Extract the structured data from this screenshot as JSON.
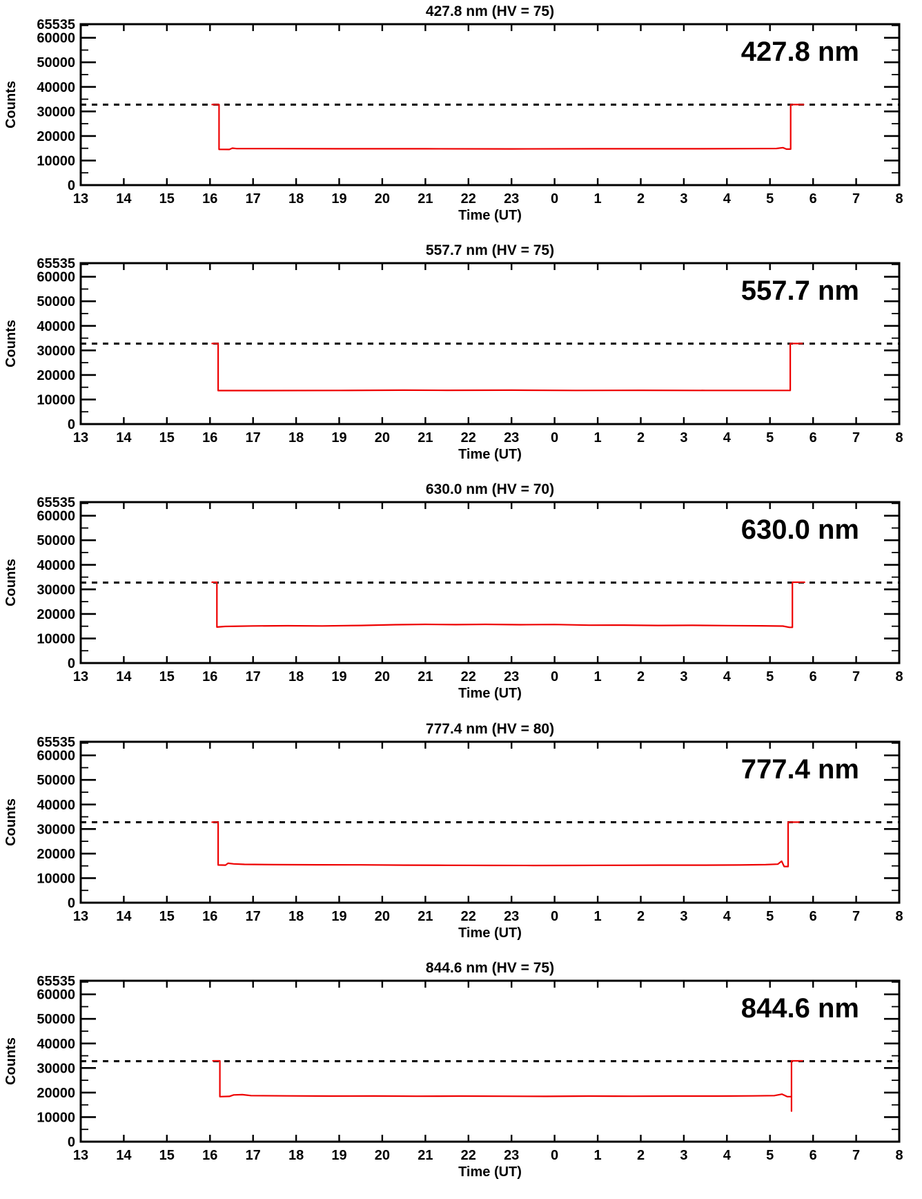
{
  "page": {
    "background": "#ffffff",
    "description": "Five stacked photometer count time-series panels"
  },
  "colors": {
    "series_line": "#ee0000",
    "axis": "#000000",
    "reference_line": "#000000",
    "text": "#000000"
  },
  "chart_data": [
    {
      "type": "line",
      "title": "427.8 nm (HV = 75)",
      "annotation": "427.8 nm",
      "xlabel": "Time (UT)",
      "ylabel": "Counts",
      "ylim": [
        0,
        65535
      ],
      "xlim_hours": [
        13,
        32
      ],
      "x_tick_labels": [
        "13",
        "14",
        "15",
        "16",
        "17",
        "18",
        "19",
        "20",
        "21",
        "22",
        "23",
        "0",
        "1",
        "2",
        "3",
        "4",
        "5",
        "6",
        "7",
        "8"
      ],
      "y_major_ticks": [
        0,
        10000,
        20000,
        30000,
        40000,
        50000,
        60000,
        65535
      ],
      "y_tick_labels": [
        "0",
        "10000",
        "20000",
        "30000",
        "40000",
        "50000",
        "60000",
        "65535"
      ],
      "y_minor_step": 5000,
      "reference_line": 32767,
      "grid": false,
      "legend": "none",
      "series": [
        {
          "name": "counts",
          "color": "#ee0000",
          "points": [
            [
              16.05,
              32800
            ],
            [
              16.21,
              32800
            ],
            [
              16.21,
              14550
            ],
            [
              16.45,
              14500
            ],
            [
              16.52,
              15050
            ],
            [
              16.62,
              14850
            ],
            [
              17.5,
              14850
            ],
            [
              19,
              14800
            ],
            [
              21,
              14800
            ],
            [
              23,
              14750
            ],
            [
              25,
              14800
            ],
            [
              27,
              14800
            ],
            [
              28.5,
              14850
            ],
            [
              29.15,
              14900
            ],
            [
              29.3,
              15250
            ],
            [
              29.38,
              14650
            ],
            [
              29.48,
              14650
            ],
            [
              29.48,
              32800
            ],
            [
              29.78,
              32800
            ]
          ]
        }
      ]
    },
    {
      "type": "line",
      "title": "557.7 nm (HV = 75)",
      "annotation": "557.7 nm",
      "xlabel": "Time (UT)",
      "ylabel": "Counts",
      "ylim": [
        0,
        65535
      ],
      "xlim_hours": [
        13,
        32
      ],
      "x_tick_labels": [
        "13",
        "14",
        "15",
        "16",
        "17",
        "18",
        "19",
        "20",
        "21",
        "22",
        "23",
        "0",
        "1",
        "2",
        "3",
        "4",
        "5",
        "6",
        "7",
        "8"
      ],
      "y_major_ticks": [
        0,
        10000,
        20000,
        30000,
        40000,
        50000,
        60000,
        65535
      ],
      "y_tick_labels": [
        "0",
        "10000",
        "20000",
        "30000",
        "40000",
        "50000",
        "60000",
        "65535"
      ],
      "y_minor_step": 5000,
      "reference_line": 32767,
      "grid": false,
      "legend": "none",
      "series": [
        {
          "name": "counts",
          "color": "#ee0000",
          "points": [
            [
              16.05,
              32800
            ],
            [
              16.19,
              32800
            ],
            [
              16.19,
              13650
            ],
            [
              17,
              13650
            ],
            [
              19,
              13700
            ],
            [
              20.5,
              13800
            ],
            [
              21.5,
              13750
            ],
            [
              23,
              13800
            ],
            [
              24.5,
              13700
            ],
            [
              26,
              13750
            ],
            [
              27.5,
              13700
            ],
            [
              29,
              13700
            ],
            [
              29.47,
              13700
            ],
            [
              29.47,
              32800
            ],
            [
              29.75,
              32800
            ]
          ]
        }
      ]
    },
    {
      "type": "line",
      "title": "630.0 nm (HV = 70)",
      "annotation": "630.0 nm",
      "xlabel": "Time (UT)",
      "ylabel": "Counts",
      "ylim": [
        0,
        65535
      ],
      "xlim_hours": [
        13,
        32
      ],
      "x_tick_labels": [
        "13",
        "14",
        "15",
        "16",
        "17",
        "18",
        "19",
        "20",
        "21",
        "22",
        "23",
        "0",
        "1",
        "2",
        "3",
        "4",
        "5",
        "6",
        "7",
        "8"
      ],
      "y_major_ticks": [
        0,
        10000,
        20000,
        30000,
        40000,
        50000,
        60000,
        65535
      ],
      "y_tick_labels": [
        "0",
        "10000",
        "20000",
        "30000",
        "40000",
        "50000",
        "60000",
        "65535"
      ],
      "y_minor_step": 5000,
      "reference_line": 32767,
      "grid": false,
      "legend": "none",
      "series": [
        {
          "name": "counts",
          "color": "#ee0000",
          "points": [
            [
              16.05,
              32900
            ],
            [
              16.16,
              32900
            ],
            [
              16.16,
              14650
            ],
            [
              16.35,
              14900
            ],
            [
              17,
              15100
            ],
            [
              17.8,
              15200
            ],
            [
              18.6,
              15100
            ],
            [
              19.5,
              15300
            ],
            [
              20.3,
              15600
            ],
            [
              21,
              15750
            ],
            [
              21.7,
              15650
            ],
            [
              22.4,
              15750
            ],
            [
              23.2,
              15600
            ],
            [
              24,
              15700
            ],
            [
              24.8,
              15400
            ],
            [
              25.6,
              15450
            ],
            [
              26.4,
              15300
            ],
            [
              27.2,
              15350
            ],
            [
              28,
              15250
            ],
            [
              28.8,
              15150
            ],
            [
              29.3,
              15050
            ],
            [
              29.45,
              14550
            ],
            [
              29.52,
              14550
            ],
            [
              29.52,
              32900
            ],
            [
              29.8,
              32900
            ]
          ]
        }
      ]
    },
    {
      "type": "line",
      "title": "777.4 nm (HV = 80)",
      "annotation": "777.4 nm",
      "xlabel": "Time (UT)",
      "ylabel": "Counts",
      "ylim": [
        0,
        65535
      ],
      "xlim_hours": [
        13,
        32
      ],
      "x_tick_labels": [
        "13",
        "14",
        "15",
        "16",
        "17",
        "18",
        "19",
        "20",
        "21",
        "22",
        "23",
        "0",
        "1",
        "2",
        "3",
        "4",
        "5",
        "6",
        "7",
        "8"
      ],
      "y_major_ticks": [
        0,
        10000,
        20000,
        30000,
        40000,
        50000,
        60000,
        65535
      ],
      "y_tick_labels": [
        "0",
        "10000",
        "20000",
        "30000",
        "40000",
        "50000",
        "60000",
        "65535"
      ],
      "y_minor_step": 5000,
      "reference_line": 32767,
      "grid": false,
      "legend": "none",
      "series": [
        {
          "name": "counts",
          "color": "#ee0000",
          "points": [
            [
              16.05,
              32800
            ],
            [
              16.19,
              32800
            ],
            [
              16.19,
              15350
            ],
            [
              16.36,
              15300
            ],
            [
              16.42,
              16050
            ],
            [
              16.55,
              15800
            ],
            [
              16.8,
              15600
            ],
            [
              17.5,
              15500
            ],
            [
              18.5,
              15450
            ],
            [
              19.5,
              15400
            ],
            [
              20.5,
              15300
            ],
            [
              21.5,
              15250
            ],
            [
              22.5,
              15200
            ],
            [
              23.5,
              15150
            ],
            [
              24.5,
              15200
            ],
            [
              25.5,
              15250
            ],
            [
              26.5,
              15300
            ],
            [
              27.5,
              15300
            ],
            [
              28.3,
              15350
            ],
            [
              28.9,
              15500
            ],
            [
              29.18,
              15700
            ],
            [
              29.27,
              16900
            ],
            [
              29.33,
              14750
            ],
            [
              29.42,
              14750
            ],
            [
              29.42,
              32800
            ],
            [
              29.68,
              32800
            ]
          ]
        }
      ]
    },
    {
      "type": "line",
      "title": "844.6 nm (HV = 75)",
      "annotation": "844.6 nm",
      "xlabel": "Time (UT)",
      "ylabel": "Counts",
      "ylim": [
        0,
        65535
      ],
      "xlim_hours": [
        13,
        32
      ],
      "x_tick_labels": [
        "13",
        "14",
        "15",
        "16",
        "17",
        "18",
        "19",
        "20",
        "21",
        "22",
        "23",
        "0",
        "1",
        "2",
        "3",
        "4",
        "5",
        "6",
        "7",
        "8"
      ],
      "y_major_ticks": [
        0,
        10000,
        20000,
        30000,
        40000,
        50000,
        60000,
        65535
      ],
      "y_tick_labels": [
        "0",
        "10000",
        "20000",
        "30000",
        "40000",
        "50000",
        "60000",
        "65535"
      ],
      "y_minor_step": 5000,
      "reference_line": 32767,
      "grid": false,
      "legend": "none",
      "series": [
        {
          "name": "counts",
          "color": "#ee0000",
          "points": [
            [
              16.07,
              32900
            ],
            [
              16.23,
              32900
            ],
            [
              16.23,
              18350
            ],
            [
              16.45,
              18450
            ],
            [
              16.55,
              19050
            ],
            [
              16.75,
              19150
            ],
            [
              16.95,
              18750
            ],
            [
              17.8,
              18650
            ],
            [
              18.8,
              18550
            ],
            [
              19.8,
              18600
            ],
            [
              20.8,
              18500
            ],
            [
              21.8,
              18550
            ],
            [
              22.8,
              18500
            ],
            [
              23.8,
              18450
            ],
            [
              24.8,
              18550
            ],
            [
              25.8,
              18500
            ],
            [
              26.8,
              18550
            ],
            [
              27.8,
              18550
            ],
            [
              28.6,
              18650
            ],
            [
              29.1,
              18750
            ],
            [
              29.28,
              19350
            ],
            [
              29.4,
              18350
            ],
            [
              29.5,
              18350
            ],
            [
              29.5,
              12450
            ],
            [
              29.5,
              32900
            ],
            [
              29.75,
              32900
            ]
          ]
        }
      ]
    }
  ]
}
